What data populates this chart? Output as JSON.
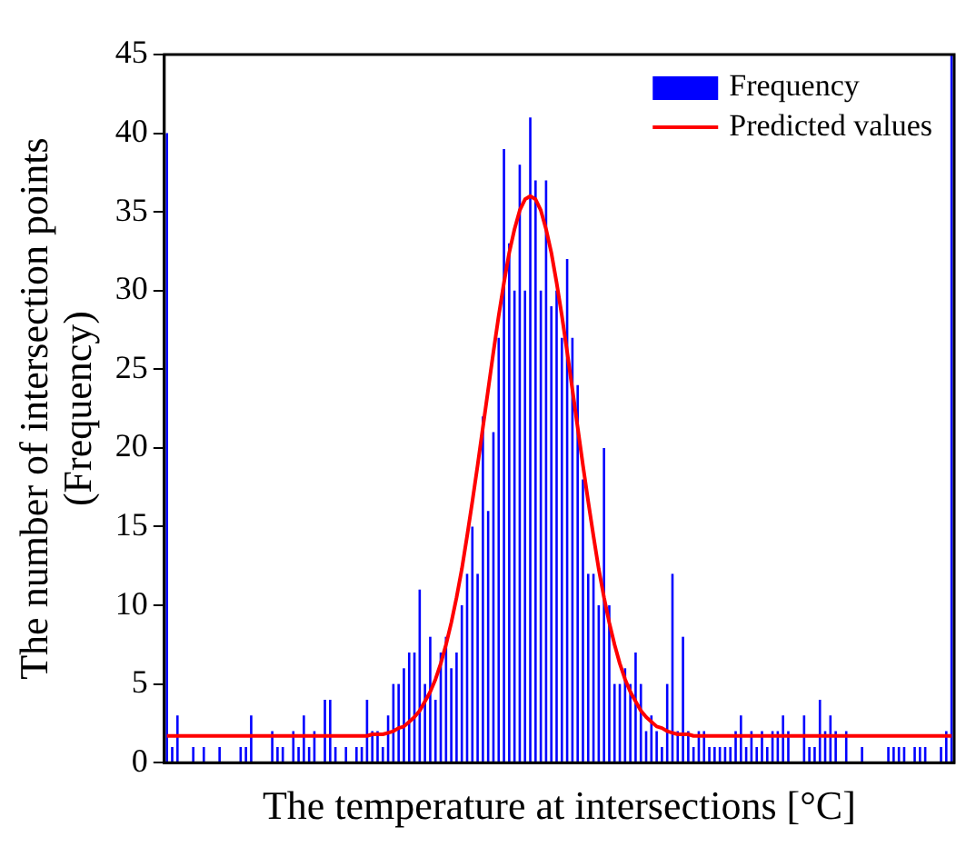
{
  "chart_data": {
    "type": "bar",
    "xlabel": "The temperature at intersections [°C]",
    "ylabel": "The number of intersection points (Frequency)",
    "categories": [
      null,
      null,
      null,
      null,
      null,
      null,
      null,
      null,
      null,
      null,
      null,
      null,
      null,
      null,
      null,
      null,
      null,
      null,
      null,
      null,
      null,
      null,
      null,
      null,
      null,
      null,
      null,
      null,
      null,
      null,
      null,
      null,
      null,
      null,
      null,
      null,
      null,
      null,
      null,
      null,
      null,
      null,
      null,
      null,
      null,
      null,
      null,
      null,
      null,
      null,
      null,
      null,
      null,
      null,
      null,
      null,
      null,
      null,
      null,
      null,
      null,
      null,
      null,
      null,
      null,
      null,
      null,
      null,
      null,
      null,
      null,
      null,
      null,
      null,
      null,
      null,
      null,
      null,
      null,
      null,
      null,
      null,
      null,
      null,
      null,
      null,
      null,
      null,
      null,
      null,
      null,
      null,
      null,
      null,
      null,
      null,
      null,
      null,
      null,
      null,
      null,
      null,
      null,
      null,
      null,
      null,
      null,
      null,
      null,
      null,
      null,
      null,
      null,
      null,
      null,
      null,
      null,
      null,
      null,
      null,
      null,
      null,
      null,
      null,
      null,
      null,
      null,
      null,
      null,
      null,
      null,
      null,
      null,
      null,
      null,
      null,
      null,
      null,
      null,
      null,
      null,
      null,
      null,
      null,
      null,
      null,
      null,
      null,
      null,
      null
    ],
    "series": [
      {
        "name": "Frequency",
        "type": "bar",
        "color": "#0000ff",
        "values": [
          40,
          1,
          3,
          0,
          0,
          1,
          0,
          1,
          0,
          0,
          1,
          0,
          0,
          0,
          1,
          1,
          3,
          0,
          0,
          0,
          2,
          1,
          1,
          0,
          2,
          1,
          3,
          1,
          2,
          0,
          4,
          4,
          1,
          0,
          1,
          0,
          1,
          1,
          4,
          2,
          2,
          1,
          3,
          5,
          5,
          6,
          7,
          7,
          11,
          5,
          8,
          4,
          7,
          8,
          6,
          7,
          10,
          12,
          15,
          12,
          22,
          16,
          21,
          27,
          39,
          33,
          30,
          38,
          30,
          41,
          37,
          30,
          37,
          29,
          30,
          27,
          32,
          27,
          24,
          18,
          12,
          12,
          10,
          20,
          10,
          5,
          5,
          6,
          5,
          7,
          5,
          2,
          3,
          2,
          1,
          5,
          12,
          2,
          8,
          2,
          1,
          2,
          2,
          1,
          1,
          1,
          1,
          1,
          2,
          3,
          1,
          2,
          1,
          2,
          1,
          2,
          2,
          3,
          2,
          0,
          0,
          3,
          1,
          1,
          4,
          2,
          3,
          2,
          0,
          2,
          0,
          0,
          1,
          0,
          0,
          0,
          0,
          1,
          1,
          1,
          1,
          0,
          1,
          1,
          1,
          0,
          0,
          1,
          2,
          45
        ]
      },
      {
        "name": "Predicted values",
        "type": "line",
        "color": "#ff0000",
        "values": [
          1.7,
          1.7,
          1.7,
          1.7,
          1.7,
          1.7,
          1.7,
          1.7,
          1.7,
          1.7,
          1.7,
          1.7,
          1.7,
          1.7,
          1.7,
          1.7,
          1.7,
          1.7,
          1.7,
          1.7,
          1.7,
          1.7,
          1.7,
          1.7,
          1.7,
          1.7,
          1.7,
          1.7,
          1.7,
          1.7,
          1.7,
          1.7,
          1.7,
          1.7,
          1.7,
          1.7,
          1.7,
          1.7,
          1.7,
          1.8,
          1.8,
          1.8,
          1.9,
          2.0,
          2.2,
          2.3,
          2.6,
          2.9,
          3.3,
          3.9,
          4.5,
          5.3,
          6.3,
          7.5,
          8.9,
          10.5,
          12.3,
          14.4,
          16.6,
          18.9,
          21.3,
          23.7,
          26.1,
          28.4,
          30.5,
          32.4,
          33.9,
          35.1,
          35.8,
          36.0,
          35.8,
          35.1,
          33.9,
          32.4,
          30.5,
          28.4,
          26.1,
          23.7,
          21.3,
          18.9,
          16.6,
          14.4,
          12.3,
          10.5,
          8.9,
          7.5,
          6.3,
          5.3,
          4.5,
          3.9,
          3.3,
          2.9,
          2.6,
          2.3,
          2.2,
          2.0,
          1.9,
          1.8,
          1.8,
          1.8,
          1.7,
          1.7,
          1.7,
          1.7,
          1.7,
          1.7,
          1.7,
          1.7,
          1.7,
          1.7,
          1.7,
          1.7,
          1.7,
          1.7,
          1.7,
          1.7,
          1.7,
          1.7,
          1.7,
          1.7,
          1.7,
          1.7,
          1.7,
          1.7,
          1.7,
          1.7,
          1.7,
          1.7,
          1.7,
          1.7,
          1.7,
          1.7,
          1.7,
          1.7,
          1.7,
          1.7,
          1.7,
          1.7,
          1.7,
          1.7,
          1.7,
          1.7,
          1.7,
          1.7,
          1.7,
          1.7,
          1.7,
          1.7,
          1.7,
          1.7
        ]
      }
    ],
    "ylim": [
      0,
      45
    ],
    "yticks": [
      0,
      5,
      10,
      15,
      20,
      25,
      30,
      35,
      40,
      45
    ],
    "grid": false,
    "legend": "top right",
    "tick_labels": "y",
    "marker": "none",
    "line_style": "solid"
  }
}
